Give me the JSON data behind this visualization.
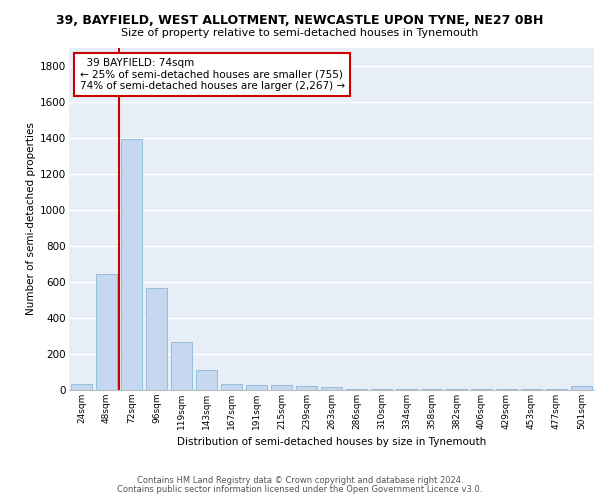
{
  "title_line1": "39, BAYFIELD, WEST ALLOTMENT, NEWCASTLE UPON TYNE, NE27 0BH",
  "title_line2": "Size of property relative to semi-detached houses in Tynemouth",
  "xlabel": "Distribution of semi-detached houses by size in Tynemouth",
  "ylabel": "Number of semi-detached properties",
  "categories": [
    "24sqm",
    "48sqm",
    "72sqm",
    "96sqm",
    "119sqm",
    "143sqm",
    "167sqm",
    "191sqm",
    "215sqm",
    "239sqm",
    "263sqm",
    "286sqm",
    "310sqm",
    "334sqm",
    "358sqm",
    "382sqm",
    "406sqm",
    "429sqm",
    "453sqm",
    "477sqm",
    "501sqm"
  ],
  "values": [
    35,
    645,
    1390,
    565,
    265,
    110,
    35,
    30,
    25,
    20,
    15,
    5,
    5,
    5,
    5,
    5,
    5,
    5,
    5,
    5,
    20
  ],
  "bar_color": "#c5d8f0",
  "bar_edge_color": "#7bafd4",
  "red_line_x": 1.5,
  "annotation_text_line1": "39 BAYFIELD: 74sqm",
  "annotation_text_line2": "← 25% of semi-detached houses are smaller (755)",
  "annotation_text_line3": "74% of semi-detached houses are larger (2,267) →",
  "annotation_box_color": "#ffffff",
  "annotation_box_edge_color": "#cc0000",
  "ylim": [
    0,
    1900
  ],
  "yticks": [
    0,
    200,
    400,
    600,
    800,
    1000,
    1200,
    1400,
    1600,
    1800
  ],
  "background_color": "#e8eef8",
  "grid_color": "#ffffff",
  "footer_line1": "Contains HM Land Registry data © Crown copyright and database right 2024.",
  "footer_line2": "Contains public sector information licensed under the Open Government Licence v3.0."
}
